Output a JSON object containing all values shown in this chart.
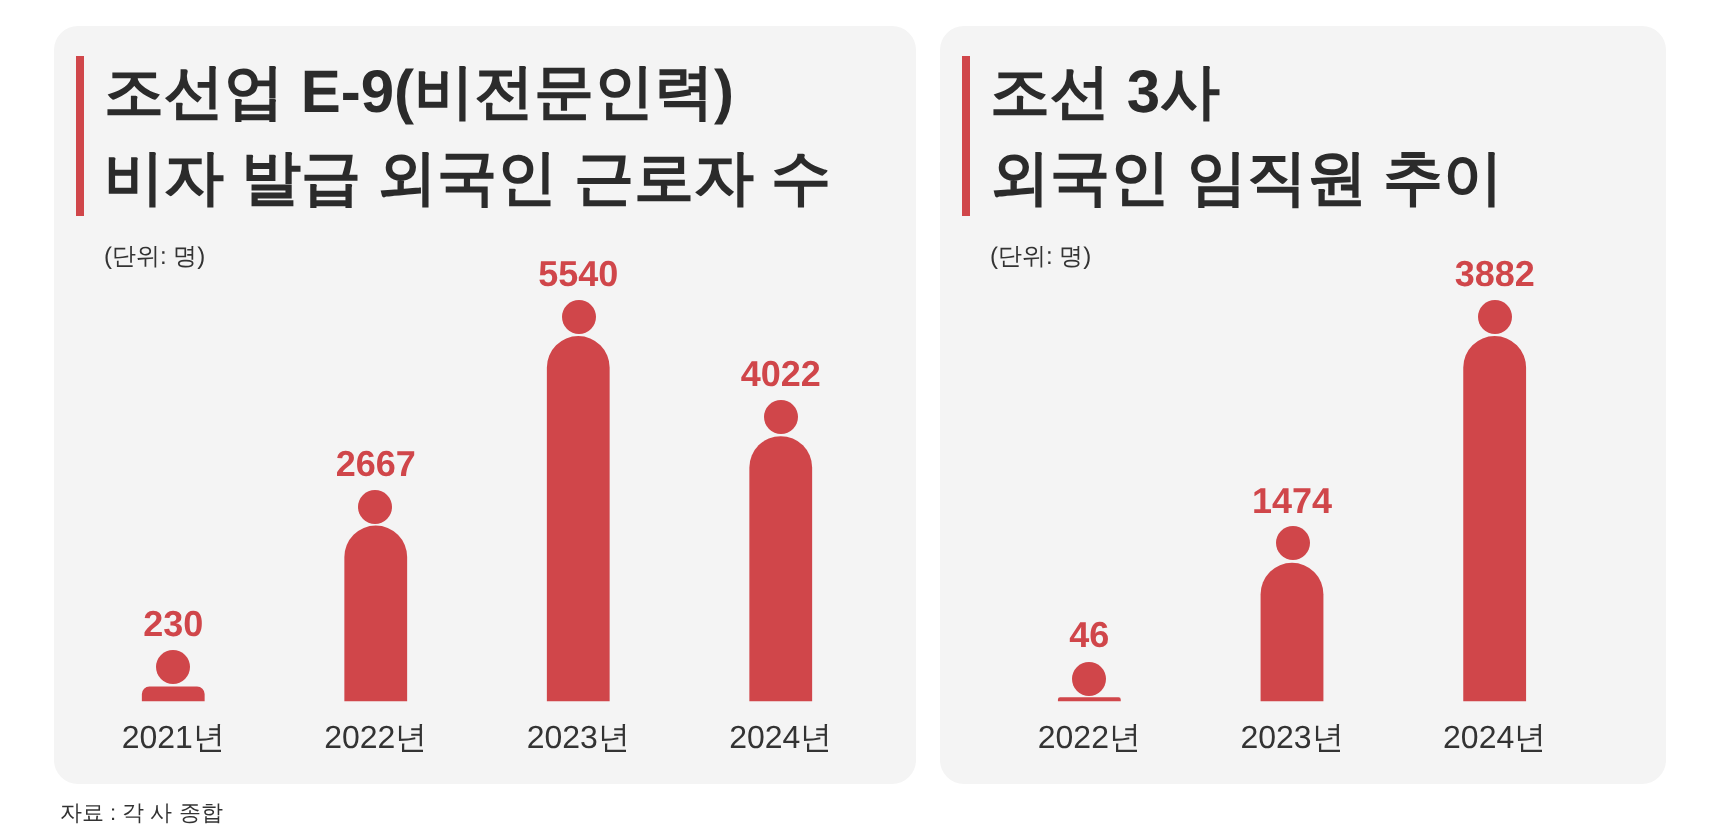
{
  "chart_data": [
    {
      "type": "bar",
      "title": "조선업 E-9(비전문인력)\n비자 발급 외국인 근로자 수",
      "subtitle": "(단위: 명)",
      "categories": [
        "2021년",
        "2022년",
        "2023년",
        "2024년"
      ],
      "values": [
        230,
        2667,
        5540,
        4022
      ],
      "color": "#d0464a",
      "data_labels": true,
      "annotations": [
        "자료 : 각 사 종합"
      ]
    },
    {
      "type": "bar",
      "title": "조선 3사\n외국인 임직원 추이",
      "subtitle": "(단위: 명)",
      "categories": [
        "2022년",
        "2023년",
        "2024년"
      ],
      "values": [
        46,
        1474,
        3882
      ],
      "color": "#d0464a",
      "data_labels": true
    }
  ]
}
